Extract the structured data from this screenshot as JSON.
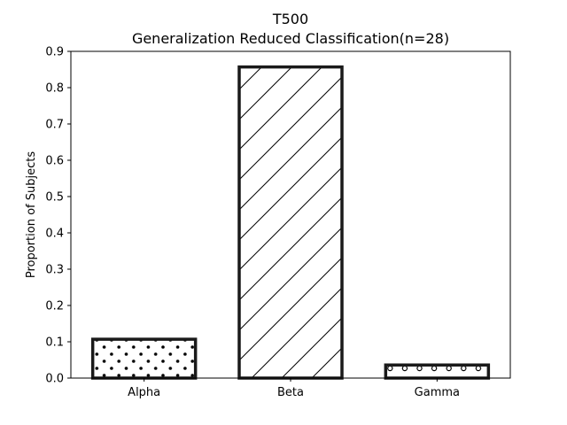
{
  "chart_data": {
    "type": "bar",
    "title": "T500",
    "subtitle": "Generalization Reduced Classification(n=28)",
    "xlabel": "",
    "ylabel": "Proportion of Subjects",
    "categories": [
      "Alpha",
      "Beta",
      "Gamma"
    ],
    "values": [
      0.107,
      0.857,
      0.036
    ],
    "hatch": [
      "dots",
      "diagonal",
      "circles"
    ],
    "ylim": [
      0,
      0.9
    ],
    "yticks": [
      "0.0",
      "0.1",
      "0.2",
      "0.3",
      "0.4",
      "0.5",
      "0.6",
      "0.7",
      "0.8",
      "0.9"
    ],
    "bar_edge_color": "#1a1a1a",
    "bar_fill_color": "#ffffff",
    "grid": false,
    "legend": "none"
  }
}
